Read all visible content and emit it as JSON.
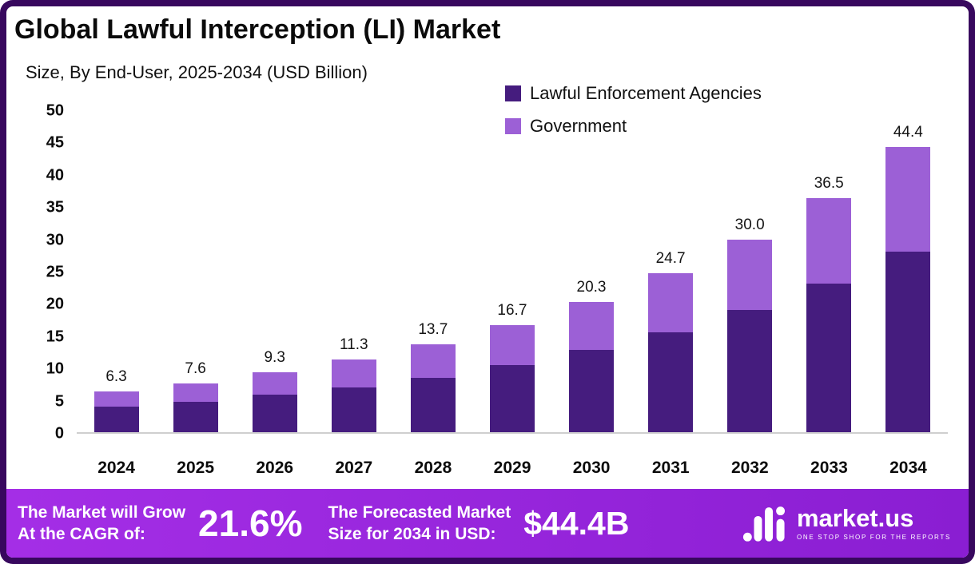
{
  "colors": {
    "frame": "#38085E",
    "footer_gradient_start": "#A42EE6",
    "footer_gradient_end": "#8A1ED2",
    "series_dark": "#451C7E",
    "series_light": "#9C60D6"
  },
  "header": {
    "title": "Global Lawful Interception (LI) Market",
    "subtitle": "Size, By End-User, 2025-2034 (USD Billion)"
  },
  "legend": [
    {
      "label": "Lawful Enforcement Agencies",
      "color": "#451C7E"
    },
    {
      "label": "Government",
      "color": "#9C60D6"
    }
  ],
  "chart_data": {
    "type": "bar",
    "stacked": true,
    "title": "Global Lawful Interception (LI) Market Size, By End-User, 2025-2034 (USD Billion)",
    "xlabel": "",
    "ylabel": "",
    "ylim": [
      0,
      50
    ],
    "yticks": [
      0,
      5,
      10,
      15,
      20,
      25,
      30,
      35,
      40,
      45,
      50
    ],
    "grid": false,
    "legend_position": "top-right",
    "categories": [
      "2024",
      "2025",
      "2026",
      "2027",
      "2028",
      "2029",
      "2030",
      "2031",
      "2032",
      "2033",
      "2034"
    ],
    "series": [
      {
        "name": "Lawful Enforcement Agencies",
        "color": "#451C7E",
        "values": [
          4.0,
          4.7,
          5.8,
          7.0,
          8.5,
          10.5,
          12.8,
          15.6,
          19.0,
          23.1,
          28.1
        ]
      },
      {
        "name": "Government",
        "color": "#9C60D6",
        "values": [
          2.3,
          2.9,
          3.5,
          4.3,
          5.2,
          6.2,
          7.5,
          9.1,
          11.0,
          13.4,
          16.3
        ]
      }
    ],
    "totals": [
      6.3,
      7.6,
      9.3,
      11.3,
      13.7,
      16.7,
      20.3,
      24.7,
      30.0,
      36.5,
      44.4
    ],
    "total_labels": [
      "6.3",
      "7.6",
      "9.3",
      "11.3",
      "13.7",
      "16.7",
      "20.3",
      "24.7",
      "30.0",
      "36.5",
      "44.4"
    ]
  },
  "footer": {
    "cagr_label_line1": "The Market will Grow",
    "cagr_label_line2": "At the CAGR of:",
    "cagr_value": "21.6%",
    "forecast_label_line1": "The Forecasted Market",
    "forecast_label_line2": "Size for 2034 in USD:",
    "forecast_value": "$44.4B",
    "brand": "market.us",
    "brand_tagline": "ONE STOP SHOP FOR THE REPORTS",
    "logo_icon": "marketus-wave-logo"
  }
}
